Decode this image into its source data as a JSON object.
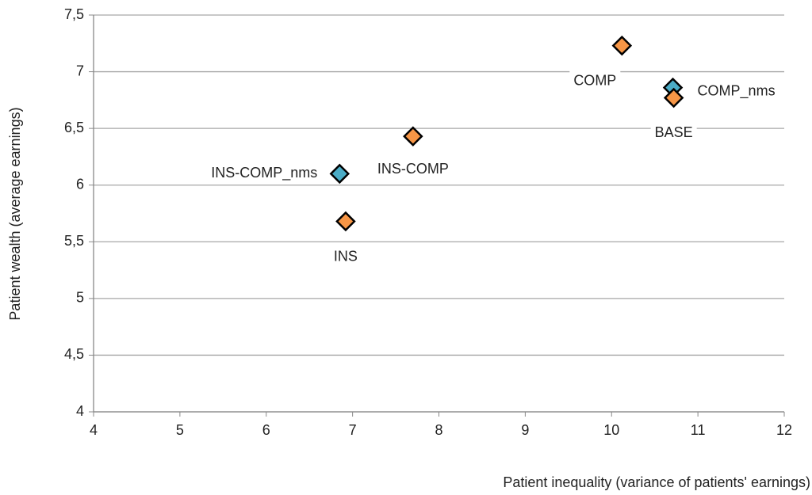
{
  "chart_data": {
    "type": "scatter",
    "x_label": "Patient inequality (variance of patients' earnings)",
    "y_label": "Patient wealth (average earnings)",
    "x": [
      10.12,
      10.71,
      10.72,
      7.7,
      6.85,
      6.92
    ],
    "values": [
      7.23,
      6.86,
      6.77,
      6.43,
      6.1,
      5.68
    ],
    "point_labels": [
      "COMP",
      "COMP_nms",
      "BASE",
      "INS-COMP",
      "INS-COMP_nms",
      "INS"
    ],
    "colors": [
      "#f79646",
      "#4bacc6",
      "#f79646",
      "#f79646",
      "#4bacc6",
      "#f79646"
    ],
    "xlim": [
      4,
      12
    ],
    "xticks": [
      4,
      5,
      6,
      7,
      8,
      9,
      10,
      11,
      12
    ],
    "ylim": [
      4,
      7.5
    ],
    "yticks": [
      4,
      {
        "value": 4.5,
        "label": "4,5"
      },
      5,
      {
        "value": 5.5,
        "label": "5,5"
      },
      6,
      {
        "value": 6.5,
        "label": "6,5"
      },
      7,
      {
        "value": 7.5,
        "label": "7,5"
      }
    ],
    "grid": true
  }
}
